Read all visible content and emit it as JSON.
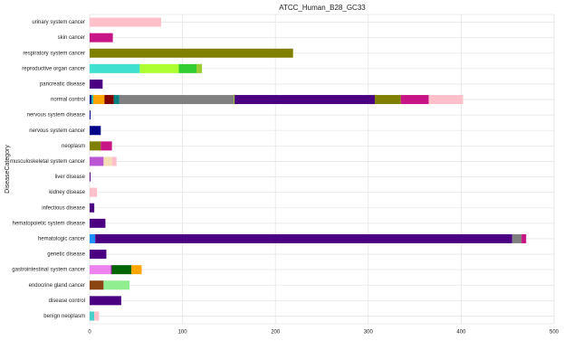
{
  "chart_data": {
    "type": "stacked-bar-horizontal",
    "title": "ATCC_Human_B28_GC33",
    "y_label": "DiseaseCategory",
    "xlim": [
      0,
      500
    ],
    "xticks": [
      0,
      100,
      200,
      300,
      400,
      500
    ],
    "grid": true,
    "bars": [
      {
        "category": "urinary system cancer",
        "segments": [
          {
            "value": 77,
            "color": "#ffc0cb"
          }
        ]
      },
      {
        "category": "skin cancer",
        "segments": [
          {
            "value": 25,
            "color": "#c71585"
          }
        ]
      },
      {
        "category": "respiratory system cancer",
        "segments": [
          {
            "value": 219,
            "color": "#808000"
          }
        ]
      },
      {
        "category": "reproductive organ cancer",
        "segments": [
          {
            "value": 54,
            "color": "#40e0d0"
          },
          {
            "value": 42,
            "color": "#adff2f"
          },
          {
            "value": 19,
            "color": "#32cd32"
          },
          {
            "value": 6,
            "color": "#9acd32"
          }
        ]
      },
      {
        "category": "pancreatic disease",
        "segments": [
          {
            "value": 14,
            "color": "#4b0082"
          }
        ]
      },
      {
        "category": "normal control",
        "segments": [
          {
            "value": 2,
            "color": "#00008b"
          },
          {
            "value": 2,
            "color": "#20b2aa"
          },
          {
            "value": 12,
            "color": "#ffa500"
          },
          {
            "value": 10,
            "color": "#800000"
          },
          {
            "value": 6,
            "color": "#008080"
          },
          {
            "value": 123,
            "color": "#808080"
          },
          {
            "value": 1,
            "color": "#9acd32"
          },
          {
            "value": 151,
            "color": "#4b0082"
          },
          {
            "value": 28,
            "color": "#808000"
          },
          {
            "value": 30,
            "color": "#c71585"
          },
          {
            "value": 37,
            "color": "#ffc0cb"
          }
        ]
      },
      {
        "category": "nervous system disease",
        "segments": [
          {
            "value": 1,
            "color": "#00008b"
          }
        ]
      },
      {
        "category": "nervous system cancer",
        "segments": [
          {
            "value": 12,
            "color": "#00008b"
          }
        ]
      },
      {
        "category": "neoplasm",
        "segments": [
          {
            "value": 12,
            "color": "#808000"
          },
          {
            "value": 12,
            "color": "#c71585"
          }
        ]
      },
      {
        "category": "musculoskeletal system cancer",
        "segments": [
          {
            "value": 15,
            "color": "#ba55d3"
          },
          {
            "value": 9,
            "color": "#f5deb3"
          },
          {
            "value": 5,
            "color": "#ffc0cb"
          }
        ]
      },
      {
        "category": "liver disease",
        "segments": [
          {
            "value": 1,
            "color": "#4b0082"
          }
        ]
      },
      {
        "category": "kidney disease",
        "segments": [
          {
            "value": 8,
            "color": "#ffc0cb"
          }
        ]
      },
      {
        "category": "infectious disease",
        "segments": [
          {
            "value": 5,
            "color": "#4b0082"
          }
        ]
      },
      {
        "category": "hematopoietic system disease",
        "segments": [
          {
            "value": 17,
            "color": "#4b0082"
          }
        ]
      },
      {
        "category": "hematologic cancer",
        "segments": [
          {
            "value": 6,
            "color": "#1e90ff"
          },
          {
            "value": 449,
            "color": "#4b0082"
          },
          {
            "value": 10,
            "color": "#808080"
          },
          {
            "value": 5,
            "color": "#c71585"
          }
        ]
      },
      {
        "category": "genetic disease",
        "segments": [
          {
            "value": 18,
            "color": "#4b0082"
          }
        ]
      },
      {
        "category": "gastrointestinal system cancer",
        "segments": [
          {
            "value": 23,
            "color": "#ee82ee"
          },
          {
            "value": 1,
            "color": "#800080"
          },
          {
            "value": 21,
            "color": "#006400"
          },
          {
            "value": 11,
            "color": "#ffa500"
          }
        ]
      },
      {
        "category": "endocrine gland cancer",
        "segments": [
          {
            "value": 15,
            "color": "#8b4513"
          },
          {
            "value": 28,
            "color": "#90ee90"
          }
        ]
      },
      {
        "category": "disease control",
        "segments": [
          {
            "value": 34,
            "color": "#4b0082"
          }
        ]
      },
      {
        "category": "benign neoplasm",
        "segments": [
          {
            "value": 5,
            "color": "#48d1cc"
          },
          {
            "value": 5,
            "color": "#ffc0cb"
          }
        ]
      }
    ]
  }
}
